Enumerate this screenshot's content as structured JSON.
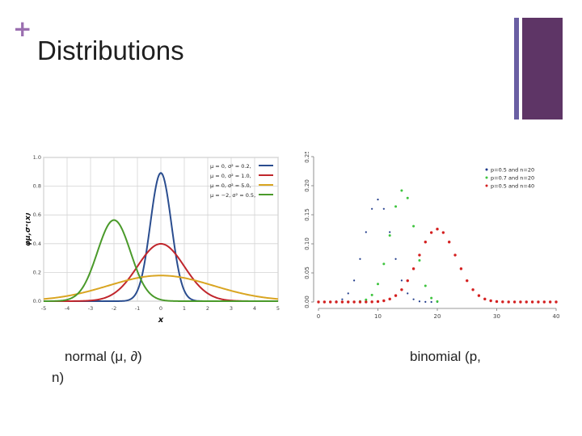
{
  "slide": {
    "plus": "+",
    "title": "Distributions",
    "caption_normal_line1": "normal (μ, ∂)",
    "caption_normal_line2": "n)",
    "caption_binomial": "binomial (p,"
  },
  "colors": {
    "plus": "#9b6fb0",
    "accent_thin": "#6a5fa3",
    "accent_block": "#5e3566"
  },
  "chart_data": [
    {
      "type": "line",
      "xlabel": "x",
      "ylabel": "φμ,σ²(x)",
      "xlim": [
        -5,
        5
      ],
      "ylim": [
        0,
        1.0
      ],
      "x_ticks": [
        -5,
        -4,
        -3,
        -2,
        -1,
        0,
        1,
        2,
        3,
        4,
        5
      ],
      "y_ticks": [
        0.0,
        0.2,
        0.4,
        0.6,
        0.8,
        1.0
      ],
      "grid": true,
      "legend_position": "top-right",
      "series": [
        {
          "name": "μ = 0,   σ² = 0.2,",
          "mu": 0,
          "variance": 0.2,
          "color": "#2a4d8f"
        },
        {
          "name": "μ = 0,   σ² = 1.0,",
          "mu": 0,
          "variance": 1.0,
          "color": "#c0262c"
        },
        {
          "name": "μ = 0,   σ² = 5.0,",
          "mu": 0,
          "variance": 5.0,
          "color": "#d9a521"
        },
        {
          "name": "μ = −2,  σ² = 0.5,",
          "mu": -2,
          "variance": 0.5,
          "color": "#4a9a2a"
        }
      ]
    },
    {
      "type": "scatter",
      "xlim": [
        0,
        40
      ],
      "ylim": [
        0,
        0.25
      ],
      "x_ticks": [
        0,
        10,
        20,
        30,
        40
      ],
      "y_ticks": [
        0.0,
        0.05,
        0.1,
        0.15,
        0.2,
        0.25
      ],
      "y_tick_labels": [
        "0.00",
        "0.05",
        "0.10",
        "0.15",
        "0.20",
        "0.25"
      ],
      "grid": false,
      "legend_position": "top-right",
      "series": [
        {
          "name": "p=0.5 and n=20",
          "p": 0.5,
          "n": 20,
          "color": "#1f3a8a"
        },
        {
          "name": "p=0.7 and n=20",
          "p": 0.7,
          "n": 20,
          "color": "#3ec43e"
        },
        {
          "name": "p=0.5 and n=40",
          "p": 0.5,
          "n": 40,
          "color": "#d42020"
        }
      ]
    }
  ]
}
